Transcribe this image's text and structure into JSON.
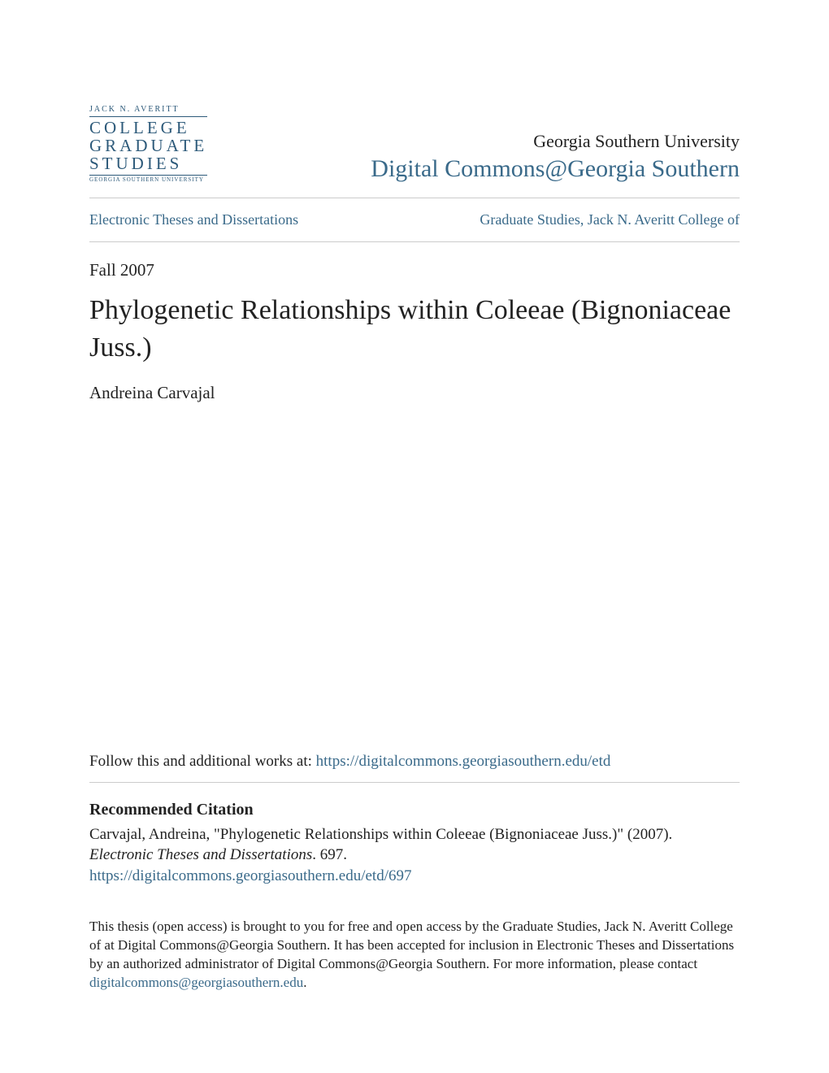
{
  "colors": {
    "link": "#3a6a8a",
    "text": "#222222",
    "rule": "#cccccc",
    "logo": "#2d5a7a",
    "background": "#ffffff"
  },
  "logo": {
    "top": "JACK N. AVERITT",
    "line1": "COLLEGE",
    "line2": "GRADUATE",
    "line3": "STUDIES",
    "sub": "GEORGIA SOUTHERN UNIVERSITY"
  },
  "header": {
    "university": "Georgia Southern University",
    "repository": "Digital Commons@Georgia Southern"
  },
  "breadcrumb": {
    "left": "Electronic Theses and Dissertations",
    "right": "Graduate Studies, Jack N. Averitt College of"
  },
  "record": {
    "date": "Fall 2007",
    "title": "Phylogenetic Relationships within Coleeae (Bignoniaceae Juss.)",
    "author": "Andreina Carvajal"
  },
  "follow": {
    "prefix": "Follow this and additional works at: ",
    "url": "https://digitalcommons.georgiasouthern.edu/etd"
  },
  "citation": {
    "heading": "Recommended Citation",
    "text_prefix": "Carvajal, Andreina, \"Phylogenetic Relationships within Coleeae (Bignoniaceae Juss.)\" (2007). ",
    "series": "Electronic Theses and Dissertations",
    "text_suffix": ". 697.",
    "url": "https://digitalcommons.georgiasouthern.edu/etd/697"
  },
  "footer": {
    "text_prefix": "This thesis (open access) is brought to you for free and open access by the Graduate Studies, Jack N. Averitt College of at Digital Commons@Georgia Southern. It has been accepted for inclusion in Electronic Theses and Dissertations by an authorized administrator of Digital Commons@Georgia Southern. For more information, please contact ",
    "email": "digitalcommons@georgiasouthern.edu",
    "text_suffix": "."
  }
}
